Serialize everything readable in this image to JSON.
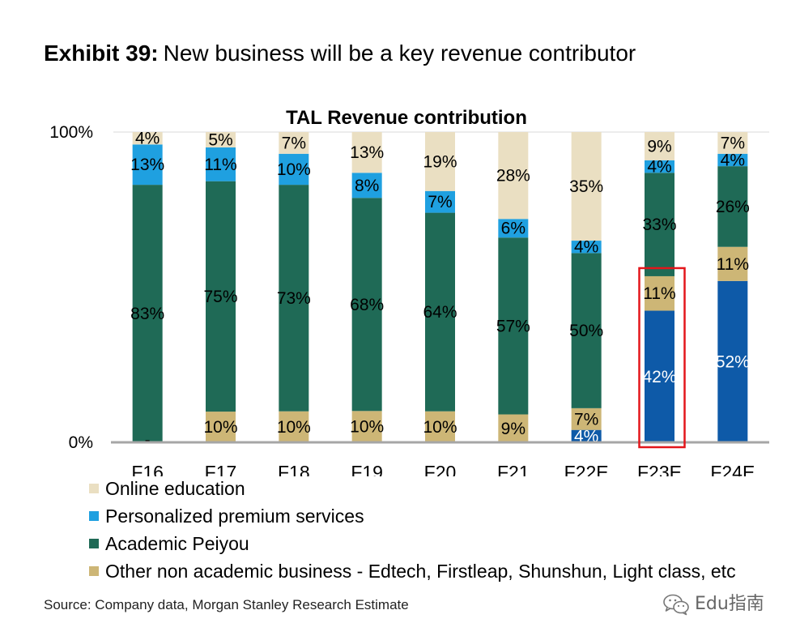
{
  "header": {
    "exhibit_label": "Exhibit 39:",
    "title": "New business will be a key revenue contributor"
  },
  "chart_data": {
    "type": "bar",
    "stacked": true,
    "title": "TAL Revenue contribution",
    "ylim": [
      0,
      100
    ],
    "y_ticks": [
      {
        "value": 100,
        "label": "100%"
      },
      {
        "value": 0,
        "label": "0%"
      }
    ],
    "grid": true,
    "legend_position": "bottom-left",
    "categories": [
      "F16",
      "F17",
      "F18",
      "F19",
      "F20",
      "F21",
      "F22E",
      "F23E",
      "F24E"
    ],
    "series": [
      {
        "color": "#0E5AA8",
        "label_color": "#FFFFFF",
        "values": [
          0,
          0,
          0,
          0,
          0,
          0,
          4,
          42,
          52
        ],
        "labels": [
          "-",
          "",
          "",
          "",
          "",
          "",
          "4%",
          "42%",
          "52%"
        ]
      },
      {
        "name": "Other non academic business - Edtech, Firstleap, Shunshun, Light class, etc",
        "color": "#CDB676",
        "label_color": "#000000",
        "values": [
          0,
          10,
          10,
          10,
          10,
          9,
          7,
          11,
          11
        ],
        "labels": [
          "",
          "10%",
          "10%",
          "10%",
          "10%",
          "9%",
          "7%",
          "11%",
          "11%"
        ]
      },
      {
        "name": "Academic Peiyou",
        "color": "#1F6A56",
        "label_color": "#000000",
        "values": [
          83,
          75,
          73,
          68,
          64,
          57,
          50,
          33,
          26
        ],
        "labels": [
          "83%",
          "75%",
          "73%",
          "68%",
          "64%",
          "57%",
          "50%",
          "33%",
          "26%"
        ]
      },
      {
        "name": "Personalized premium services",
        "color": "#1FA0E0",
        "label_color": "#000000",
        "values": [
          13,
          11,
          10,
          8,
          7,
          6,
          4,
          4,
          4
        ],
        "labels": [
          "13%",
          "11%",
          "10%",
          "8%",
          "7%",
          "6%",
          "4%",
          "4%",
          "4%"
        ]
      },
      {
        "name": "Online education",
        "color": "#EADFC2",
        "label_color": "#000000",
        "values": [
          4,
          5,
          7,
          13,
          19,
          28,
          35,
          9,
          7
        ],
        "labels": [
          "4%",
          "5%",
          "7%",
          "13%",
          "19%",
          "28%",
          "35%",
          "9%",
          "7%"
        ]
      }
    ],
    "highlight": {
      "category": "F23E",
      "color": "#E3161B"
    }
  },
  "source": "Source: Company data, Morgan Stanley Research Estimate",
  "watermark": {
    "text": "Edu指南",
    "icon": "wechat-icon"
  }
}
